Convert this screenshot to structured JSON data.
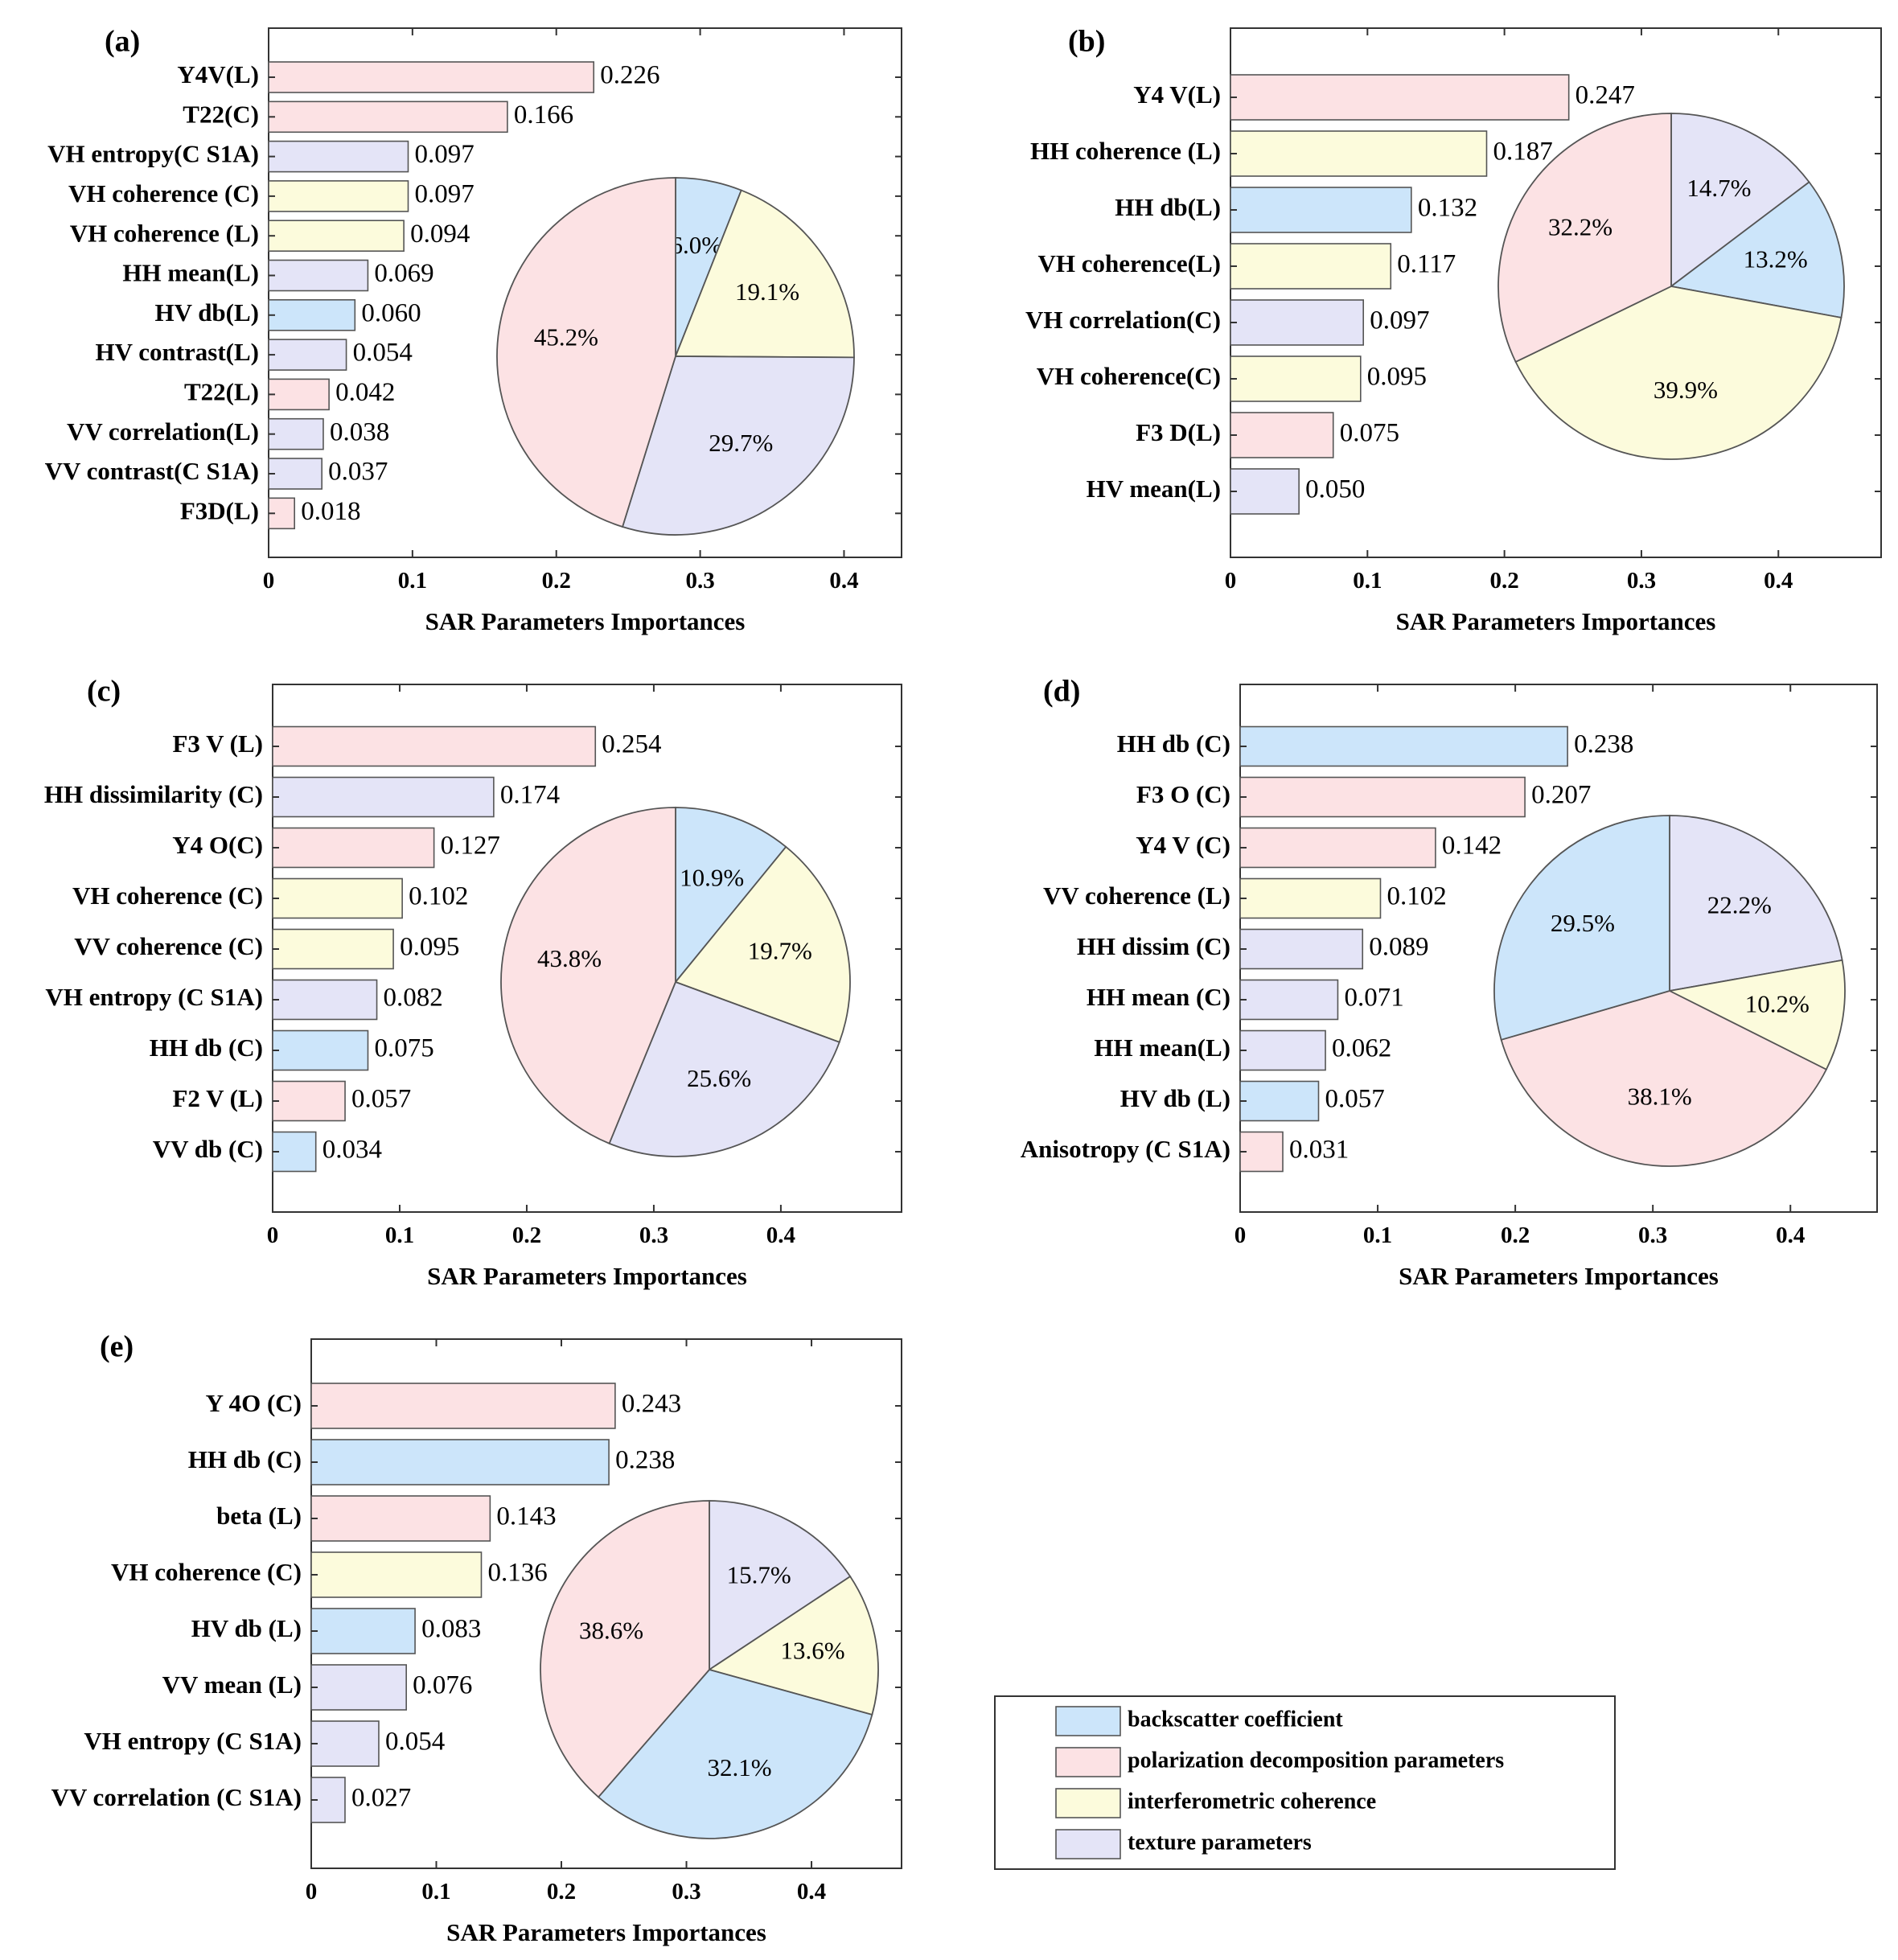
{
  "colors": {
    "backscatter": "#cce5fa",
    "polarization": "#fce2e4",
    "coherence": "#fcfbdc",
    "texture": "#e4e4f7",
    "edge": "#555555"
  },
  "legend": [
    {
      "key": "backscatter",
      "label": "backscatter coefficient"
    },
    {
      "key": "polarization",
      "label": "polarization decomposition parameters"
    },
    {
      "key": "coherence",
      "label": "interferometric coherence"
    },
    {
      "key": "texture",
      "label": "texture parameters"
    }
  ],
  "chart_data": [
    {
      "panel": "(a)",
      "type": "bar",
      "xlabel": "SAR Parameters Importances",
      "xticks": [
        "0",
        "0.1",
        "0.2",
        "0.3",
        "0.4"
      ],
      "xlim": [
        0,
        0.44
      ],
      "bars": [
        {
          "label": "Y4V(L)",
          "value": 0.226,
          "text": "0.226",
          "cat": "polarization"
        },
        {
          "label": "T22(C)",
          "value": 0.166,
          "text": "0.166",
          "cat": "polarization"
        },
        {
          "label": "VH entropy(C S1A)",
          "value": 0.097,
          "text": "0.097",
          "cat": "texture"
        },
        {
          "label": "VH coherence (C)",
          "value": 0.097,
          "text": "0.097",
          "cat": "coherence"
        },
        {
          "label": "VH coherence (L)",
          "value": 0.094,
          "text": "0.094",
          "cat": "coherence"
        },
        {
          "label": "HH mean(L)",
          "value": 0.069,
          "text": "0.069",
          "cat": "texture"
        },
        {
          "label": "HV db(L)",
          "value": 0.06,
          "text": "0.060",
          "cat": "backscatter"
        },
        {
          "label": "HV contrast(L)",
          "value": 0.054,
          "text": "0.054",
          "cat": "texture"
        },
        {
          "label": "T22(L)",
          "value": 0.042,
          "text": "0.042",
          "cat": "polarization"
        },
        {
          "label": "VV correlation(L)",
          "value": 0.038,
          "text": "0.038",
          "cat": "texture"
        },
        {
          "label": "VV contrast(C S1A)",
          "value": 0.037,
          "text": "0.037",
          "cat": "texture"
        },
        {
          "label": "F3D(L)",
          "value": 0.018,
          "text": "0.018",
          "cat": "polarization"
        }
      ],
      "pie": [
        {
          "cat": "backscatter",
          "value": 6.0,
          "text": "6.0%"
        },
        {
          "cat": "coherence",
          "value": 19.1,
          "text": "19.1%"
        },
        {
          "cat": "texture",
          "value": 29.7,
          "text": "29.7%"
        },
        {
          "cat": "polarization",
          "value": 45.2,
          "text": "45.2%"
        }
      ]
    },
    {
      "panel": "(b)",
      "type": "bar",
      "xlabel": "SAR Parameters Importances",
      "xticks": [
        "0",
        "0.1",
        "0.2",
        "0.3",
        "0.4"
      ],
      "xlim": [
        0,
        0.475
      ],
      "bars": [
        {
          "label": "Y4 V(L)",
          "value": 0.247,
          "text": "0.247",
          "cat": "polarization"
        },
        {
          "label": "HH  coherence (L)",
          "value": 0.187,
          "text": "0.187",
          "cat": "coherence"
        },
        {
          "label": "HH db(L)",
          "value": 0.132,
          "text": "0.132",
          "cat": "backscatter"
        },
        {
          "label": "VH coherence(L)",
          "value": 0.117,
          "text": "0.117",
          "cat": "coherence"
        },
        {
          "label": "VH correlation(C)",
          "value": 0.097,
          "text": "0.097",
          "cat": "texture"
        },
        {
          "label": "VH  coherence(C)",
          "value": 0.095,
          "text": "0.095",
          "cat": "coherence"
        },
        {
          "label": "F3 D(L)",
          "value": 0.075,
          "text": "0.075",
          "cat": "polarization"
        },
        {
          "label": "HV mean(L)",
          "value": 0.05,
          "text": "0.050",
          "cat": "texture"
        }
      ],
      "pie": [
        {
          "cat": "texture",
          "value": 14.7,
          "text": "14.7%"
        },
        {
          "cat": "backscatter",
          "value": 13.2,
          "text": "13.2%"
        },
        {
          "cat": "coherence",
          "value": 39.9,
          "text": "39.9%"
        },
        {
          "cat": "polarization",
          "value": 32.2,
          "text": "32.2%"
        }
      ]
    },
    {
      "panel": "(c)",
      "type": "bar",
      "xlabel": "SAR Parameters Importances",
      "xticks": [
        "0",
        "0.1",
        "0.2",
        "0.3",
        "0.4"
      ],
      "xlim": [
        0,
        0.495
      ],
      "bars": [
        {
          "label": "F3 V (L)",
          "value": 0.254,
          "text": "0.254",
          "cat": "polarization"
        },
        {
          "label": "HH dissimilarity (C)",
          "value": 0.174,
          "text": "0.174",
          "cat": "texture"
        },
        {
          "label": "Y4 O(C)",
          "value": 0.127,
          "text": "0.127",
          "cat": "polarization"
        },
        {
          "label": "VH coherence (C)",
          "value": 0.102,
          "text": "0.102",
          "cat": "coherence"
        },
        {
          "label": "VV coherence (C)",
          "value": 0.095,
          "text": "0.095",
          "cat": "coherence"
        },
        {
          "label": "VH entropy (C S1A)",
          "value": 0.082,
          "text": "0.082",
          "cat": "texture"
        },
        {
          "label": "HH db (C)",
          "value": 0.075,
          "text": "0.075",
          "cat": "backscatter"
        },
        {
          "label": "F2 V (L)",
          "value": 0.057,
          "text": "0.057",
          "cat": "polarization"
        },
        {
          "label": "VV db (C)",
          "value": 0.034,
          "text": "0.034",
          "cat": "backscatter"
        }
      ],
      "pie": [
        {
          "cat": "backscatter",
          "value": 10.9,
          "text": "10.9%"
        },
        {
          "cat": "coherence",
          "value": 19.7,
          "text": "19.7%"
        },
        {
          "cat": "texture",
          "value": 25.6,
          "text": "25.6%"
        },
        {
          "cat": "polarization",
          "value": 43.8,
          "text": "43.8%"
        }
      ]
    },
    {
      "panel": "(d)",
      "type": "bar",
      "xlabel": "SAR Parameters Importances",
      "xticks": [
        "0",
        "0.1",
        "0.2",
        "0.3",
        "0.4"
      ],
      "xlim": [
        0,
        0.463
      ],
      "bars": [
        {
          "label": "HH db (C)",
          "value": 0.238,
          "text": "0.238",
          "cat": "backscatter"
        },
        {
          "label": "F3 O (C)",
          "value": 0.207,
          "text": "0.207",
          "cat": "polarization"
        },
        {
          "label": "Y4 V (C)",
          "value": 0.142,
          "text": "0.142",
          "cat": "polarization"
        },
        {
          "label": "VV coherence (L)",
          "value": 0.102,
          "text": "0.102",
          "cat": "coherence"
        },
        {
          "label": "HH dissim (C)",
          "value": 0.089,
          "text": "0.089",
          "cat": "texture"
        },
        {
          "label": "HH mean (C)",
          "value": 0.071,
          "text": "0.071",
          "cat": "texture"
        },
        {
          "label": "HH mean(L)",
          "value": 0.062,
          "text": "0.062",
          "cat": "texture"
        },
        {
          "label": "HV db (L)",
          "value": 0.057,
          "text": "0.057",
          "cat": "backscatter"
        },
        {
          "label": "Anisotropy (C S1A)",
          "value": 0.031,
          "text": "0.031",
          "cat": "polarization"
        }
      ],
      "pie": [
        {
          "cat": "texture",
          "value": 22.2,
          "text": "22.2%"
        },
        {
          "cat": "coherence",
          "value": 10.2,
          "text": "10.2%"
        },
        {
          "cat": "polarization",
          "value": 38.1,
          "text": "38.1%"
        },
        {
          "cat": "backscatter",
          "value": 29.5,
          "text": "29.5%"
        }
      ]
    },
    {
      "panel": "(e)",
      "type": "bar",
      "xlabel": "SAR Parameters Importances",
      "xticks": [
        "0",
        "0.1",
        "0.2",
        "0.3",
        "0.4"
      ],
      "xlim": [
        0,
        0.472
      ],
      "bars": [
        {
          "label": "Y 4O (C)",
          "value": 0.243,
          "text": "0.243",
          "cat": "polarization"
        },
        {
          "label": "HH  db (C)",
          "value": 0.238,
          "text": "0.238",
          "cat": "backscatter"
        },
        {
          "label": "beta (L)",
          "value": 0.143,
          "text": "0.143",
          "cat": "polarization"
        },
        {
          "label": "VH coherence  (C)",
          "value": 0.136,
          "text": "0.136",
          "cat": "coherence"
        },
        {
          "label": "HV db (L)",
          "value": 0.083,
          "text": "0.083",
          "cat": "backscatter"
        },
        {
          "label": "VV mean (L)",
          "value": 0.076,
          "text": "0.076",
          "cat": "texture"
        },
        {
          "label": "VH entropy (C S1A)",
          "value": 0.054,
          "text": "0.054",
          "cat": "texture"
        },
        {
          "label": "VV correlation (C S1A)",
          "value": 0.027,
          "text": "0.027",
          "cat": "texture"
        }
      ],
      "pie": [
        {
          "cat": "texture",
          "value": 15.7,
          "text": "15.7%"
        },
        {
          "cat": "coherence",
          "value": 13.6,
          "text": "13.6%"
        },
        {
          "cat": "backscatter",
          "value": 32.1,
          "text": "32.1%"
        },
        {
          "cat": "polarization",
          "value": 38.6,
          "text": "38.6%"
        }
      ]
    }
  ]
}
